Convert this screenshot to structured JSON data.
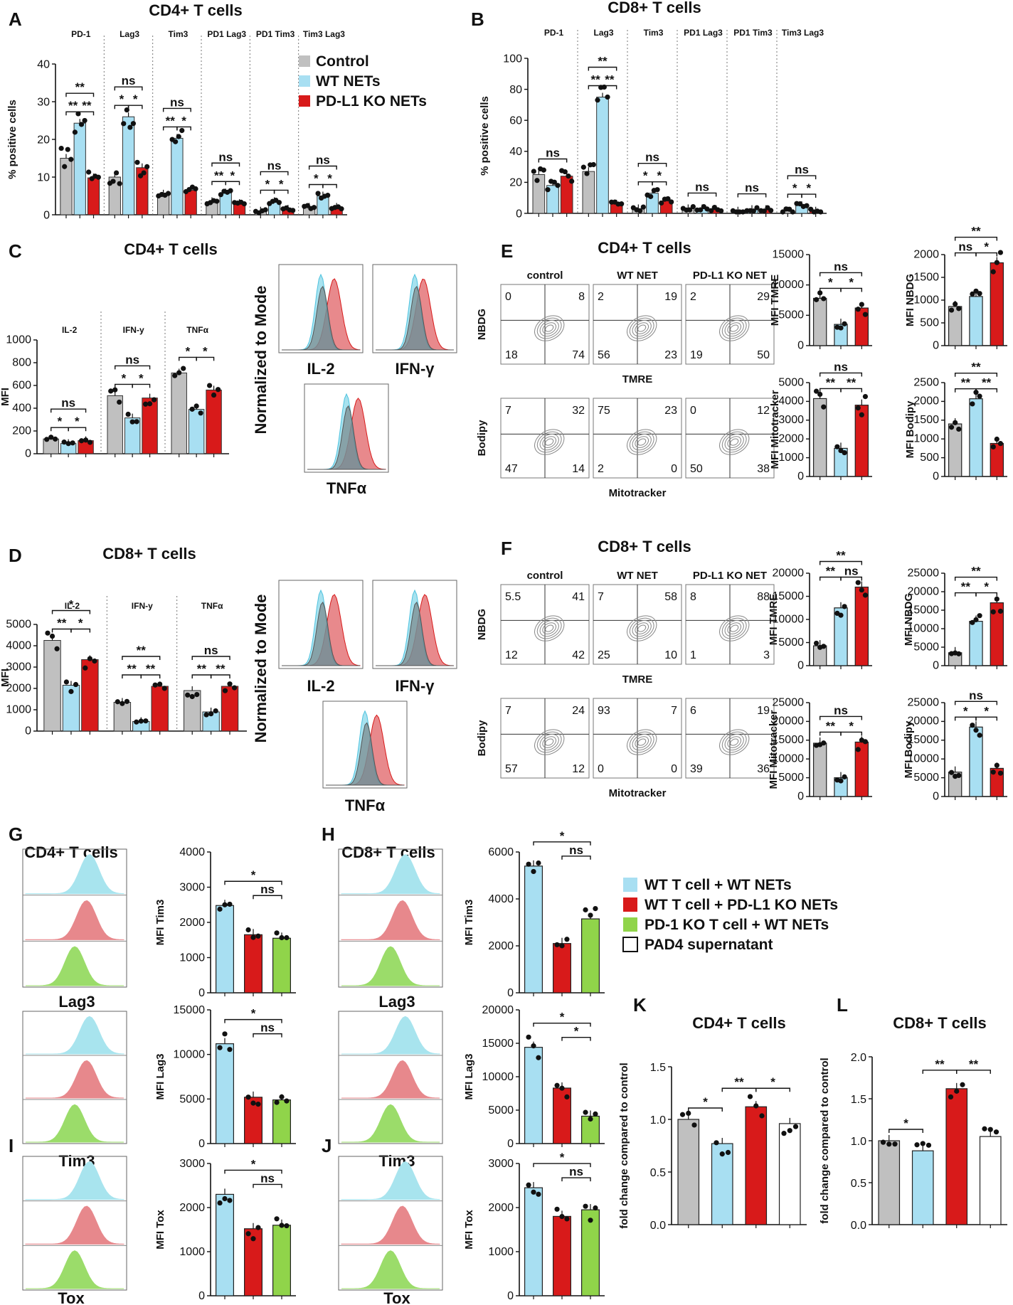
{
  "colors": {
    "control": "#c0c0c0",
    "wt": "#a8dff2",
    "ko": "#d81a1a",
    "pd1ko": "#90d44a",
    "pad4": "#ffffff",
    "dot": "#111111"
  },
  "legend_main": [
    "Control",
    "WT NETs",
    "PD-L1 KO NETs"
  ],
  "legend_gh": [
    "WT T cell + WT NETs",
    "WT T cell + PD-L1 KO NETs",
    "PD-1 KO T cell + WT NETs",
    "PAD4 supernatant"
  ],
  "chart_data": [
    {
      "id": "A",
      "type": "bar",
      "title": "CD4+ T cells",
      "ylabel": "% positive cells",
      "ylim": [
        0,
        40
      ],
      "yticks": [
        0,
        10,
        20,
        30,
        40
      ],
      "series_names": [
        "Control",
        "WT NETs",
        "PD-L1 KO NETs"
      ],
      "groups": [
        {
          "label": "PD-1",
          "values": [
            15,
            24.3,
            9.8
          ],
          "sig": [
            "**",
            "**",
            "**"
          ]
        },
        {
          "label": "Lag3",
          "values": [
            10,
            26,
            12.5
          ],
          "sig": [
            "ns",
            "*",
            "*"
          ]
        },
        {
          "label": "Tim3",
          "values": [
            5.5,
            20.3,
            6.5
          ],
          "sig": [
            "ns",
            "**",
            "*"
          ]
        },
        {
          "label": "PD1 Lag3",
          "values": [
            3.5,
            5.8,
            3
          ],
          "sig": [
            "ns",
            "**",
            "*"
          ]
        },
        {
          "label": "PD1 Tim3",
          "values": [
            1,
            3.5,
            1.5
          ],
          "sig": [
            "ns",
            "*",
            "*"
          ]
        },
        {
          "label": "Tim3 Lag3",
          "values": [
            2,
            5,
            2
          ],
          "sig": [
            "ns",
            "*",
            "*"
          ]
        }
      ]
    },
    {
      "id": "B",
      "type": "bar",
      "title": "CD8+ T cells",
      "ylabel": "% positive cells",
      "ylim": [
        0,
        100
      ],
      "yticks": [
        0,
        20,
        40,
        60,
        80,
        100
      ],
      "series_names": [
        "Control",
        "WT NETs",
        "PD-L1 KO NETs"
      ],
      "groups": [
        {
          "label": "PD-1",
          "values": [
            25,
            18,
            24
          ],
          "sig": [
            "ns"
          ]
        },
        {
          "label": "Lag3",
          "values": [
            27,
            75,
            6
          ],
          "sig": [
            "**",
            "**",
            "**"
          ]
        },
        {
          "label": "Tim3",
          "values": [
            3,
            13,
            8
          ],
          "sig": [
            "ns",
            "*",
            "*"
          ]
        },
        {
          "label": "PD1 Lag3",
          "values": [
            3,
            3,
            2.5
          ],
          "sig": [
            "ns"
          ]
        },
        {
          "label": "PD1 Tim3",
          "values": [
            1.5,
            2.5,
            2.5
          ],
          "sig": [
            "ns"
          ]
        },
        {
          "label": "Tim3 Lag3",
          "values": [
            1.5,
            5,
            1.5
          ],
          "sig": [
            "ns",
            "*",
            "*"
          ]
        }
      ]
    },
    {
      "id": "C",
      "type": "bar",
      "title": "CD4+ T cells",
      "ylabel": "MFI",
      "ylim": [
        0,
        1000
      ],
      "yticks": [
        0,
        200,
        400,
        600,
        800,
        1000
      ],
      "series_names": [
        "Control",
        "WT NETs",
        "PD-L1 KO NETs"
      ],
      "groups": [
        {
          "label": "IL-2",
          "values": [
            130,
            90,
            115
          ],
          "sig": [
            "ns",
            "*",
            "*"
          ]
        },
        {
          "label": "IFN-y",
          "values": [
            510,
            315,
            490
          ],
          "sig": [
            "ns",
            "*",
            "*"
          ]
        },
        {
          "label": "TNFα",
          "values": [
            710,
            390,
            560
          ],
          "sig": [
            "*",
            "*"
          ]
        }
      ]
    },
    {
      "id": "D",
      "type": "bar",
      "title": "CD8+ T cells",
      "ylabel": "MFI",
      "ylim": [
        0,
        5000
      ],
      "yticks": [
        0,
        1000,
        2000,
        3000,
        4000,
        5000
      ],
      "series_names": [
        "Control",
        "WT NETs",
        "PD-L1 KO NETs"
      ],
      "groups": [
        {
          "label": "IL-2",
          "values": [
            4250,
            2150,
            3350
          ],
          "sig": [
            "*",
            "**",
            "*"
          ]
        },
        {
          "label": "IFN-y",
          "values": [
            1350,
            450,
            2100
          ],
          "sig": [
            "**",
            "**",
            "**"
          ]
        },
        {
          "label": "TNFα",
          "values": [
            1900,
            900,
            2100
          ],
          "sig": [
            "ns",
            "**",
            "**"
          ]
        }
      ]
    },
    {
      "id": "E-TMRE",
      "type": "bar",
      "ylabel": "MFI TMRE",
      "ylim": [
        0,
        15000
      ],
      "yticks": [
        0,
        5000,
        10000,
        15000
      ],
      "values": [
        7800,
        3500,
        6200
      ],
      "sig": [
        "ns",
        "*",
        "*"
      ]
    },
    {
      "id": "E-NBDG",
      "type": "bar",
      "ylabel": "MFI NBDG",
      "ylim": [
        0,
        2000
      ],
      "yticks": [
        0,
        500,
        1000,
        1500,
        2000
      ],
      "values": [
        860,
        1080,
        1820
      ],
      "sig": [
        "**",
        "ns",
        "*"
      ]
    },
    {
      "id": "E-Mito",
      "type": "bar",
      "ylabel": "MFI Mitotracker",
      "ylim": [
        0,
        5000
      ],
      "yticks": [
        0,
        1000,
        2000,
        3000,
        4000,
        5000
      ],
      "values": [
        4150,
        1500,
        3800
      ],
      "sig": [
        "ns",
        "**",
        "**"
      ]
    },
    {
      "id": "E-Bodipy",
      "type": "bar",
      "ylabel": "MFI Bodipy",
      "ylim": [
        0,
        2500
      ],
      "yticks": [
        0,
        500,
        1000,
        1500,
        2000,
        2500
      ],
      "values": [
        1400,
        2070,
        880
      ],
      "sig": [
        "**",
        "**",
        "**"
      ]
    },
    {
      "id": "F-TMRE",
      "type": "bar",
      "ylabel": "MFI TMRE",
      "ylim": [
        0,
        20000
      ],
      "yticks": [
        0,
        5000,
        10000,
        15000,
        20000
      ],
      "values": [
        4300,
        12500,
        17000
      ],
      "sig": [
        "**",
        "**",
        "ns"
      ]
    },
    {
      "id": "F-NBDG",
      "type": "bar",
      "ylabel": "MFI NBDG",
      "ylim": [
        0,
        25000
      ],
      "yticks": [
        0,
        5000,
        10000,
        15000,
        20000,
        25000
      ],
      "values": [
        3500,
        12000,
        17000
      ],
      "sig": [
        "**",
        "**",
        "*"
      ]
    },
    {
      "id": "F-Mito",
      "type": "bar",
      "ylabel": "MFI Mitotracker",
      "ylim": [
        0,
        25000
      ],
      "yticks": [
        0,
        5000,
        10000,
        15000,
        20000,
        25000
      ],
      "values": [
        14200,
        5000,
        14500
      ],
      "sig": [
        "ns",
        "**",
        "*"
      ]
    },
    {
      "id": "F-Bodipy",
      "type": "bar",
      "ylabel": "MFI Bodipy",
      "ylim": [
        0,
        25000
      ],
      "yticks": [
        0,
        5000,
        10000,
        15000,
        20000,
        25000
      ],
      "values": [
        6500,
        18500,
        7500
      ],
      "sig": [
        "ns",
        "*",
        "*"
      ]
    },
    {
      "id": "G-Tim3",
      "type": "bar",
      "ylabel": "MFI Tim3",
      "ylim": [
        0,
        4000
      ],
      "yticks": [
        0,
        1000,
        2000,
        3000,
        4000
      ],
      "values": [
        2480,
        1650,
        1550
      ],
      "sig": [
        "*",
        "ns"
      ]
    },
    {
      "id": "G-Lag3",
      "type": "bar",
      "ylabel": "MFI Lag3",
      "ylim": [
        0,
        15000
      ],
      "yticks": [
        0,
        5000,
        10000,
        15000
      ],
      "values": [
        11200,
        5200,
        4900
      ],
      "sig": [
        "*",
        "ns"
      ]
    },
    {
      "id": "I-Tox",
      "type": "bar",
      "ylabel": "MFI Tox",
      "ylim": [
        0,
        3000
      ],
      "yticks": [
        0,
        1000,
        2000,
        3000
      ],
      "values": [
        2300,
        1520,
        1600
      ],
      "sig": [
        "*",
        "ns"
      ]
    },
    {
      "id": "H-Tim3",
      "type": "bar",
      "ylabel": "MFI Tim3",
      "ylim": [
        0,
        6000
      ],
      "yticks": [
        0,
        2000,
        4000,
        6000
      ],
      "values": [
        5400,
        2100,
        3150
      ],
      "sig": [
        "*",
        "ns"
      ]
    },
    {
      "id": "H-Lag3",
      "type": "bar",
      "ylabel": "MFI Lag3",
      "ylim": [
        0,
        20000
      ],
      "yticks": [
        0,
        5000,
        10000,
        15000,
        20000
      ],
      "values": [
        14400,
        8300,
        4100
      ],
      "sig": [
        "*",
        "*"
      ]
    },
    {
      "id": "J-Tox",
      "type": "bar",
      "ylabel": "MFI Tox",
      "ylim": [
        0,
        3000
      ],
      "yticks": [
        0,
        1000,
        2000,
        3000
      ],
      "values": [
        2450,
        1800,
        1950
      ],
      "sig": [
        "*",
        "ns"
      ]
    },
    {
      "id": "K",
      "type": "bar",
      "title": "CD4+ T cells",
      "ylabel": "fold change compared to control",
      "ylim": [
        0,
        1.5
      ],
      "yticks": [
        "0.0",
        "0.5",
        "1.0",
        "1.5"
      ],
      "values": [
        1.0,
        0.77,
        1.12,
        0.96
      ],
      "sig": [
        "*",
        "**",
        "*"
      ]
    },
    {
      "id": "L",
      "type": "bar",
      "title": "CD8+ T cells",
      "ylabel": "fold change compared to control",
      "ylim": [
        0,
        2.0
      ],
      "yticks": [
        "0.0",
        "0.5",
        "1.0",
        "1.5",
        "2.0"
      ],
      "values": [
        1.0,
        0.88,
        1.62,
        1.05
      ],
      "sig": [
        "*",
        "**",
        "**"
      ]
    }
  ],
  "flow": {
    "E": {
      "title": "CD4+ T cells",
      "cols": [
        "control",
        "WT NET",
        "PD-L1 KO NET"
      ],
      "rows": [
        "NBDG",
        "Bodipy"
      ],
      "xlabels": [
        "TMRE",
        "Mitotracker"
      ],
      "quads": [
        [
          [
            "0",
            "8",
            "18",
            "74"
          ],
          [
            "2",
            "19",
            "56",
            "23"
          ],
          [
            "2",
            "29",
            "19",
            "50"
          ]
        ],
        [
          [
            "7",
            "32",
            "47",
            "14"
          ],
          [
            "75",
            "23",
            "2",
            "0"
          ],
          [
            "0",
            "12",
            "50",
            "38"
          ]
        ]
      ]
    },
    "F": {
      "title": "CD8+ T cells",
      "cols": [
        "control",
        "WT NET",
        "PD-L1 KO NET"
      ],
      "rows": [
        "NBDG",
        "Bodipy"
      ],
      "xlabels": [
        "TMRE",
        "Mitotracker"
      ],
      "quads": [
        [
          [
            "5.5",
            "41",
            "12",
            "42"
          ],
          [
            "7",
            "58",
            "25",
            "10"
          ],
          [
            "8",
            "88",
            "1",
            "3"
          ]
        ],
        [
          [
            "7",
            "24",
            "57",
            "12"
          ],
          [
            "93",
            "7",
            "0",
            "0"
          ],
          [
            "6",
            "19",
            "39",
            "36"
          ]
        ]
      ]
    },
    "hist_ylabel": "Normalized to Mode",
    "hist_labels": [
      "IL-2",
      "IFN-γ",
      "TNFα"
    ],
    "stack_labels": {
      "G": [
        "Lag3",
        "Tim3"
      ],
      "I": "Tox",
      "H": [
        "Lag3",
        "Tim3"
      ],
      "J": "Tox"
    }
  }
}
